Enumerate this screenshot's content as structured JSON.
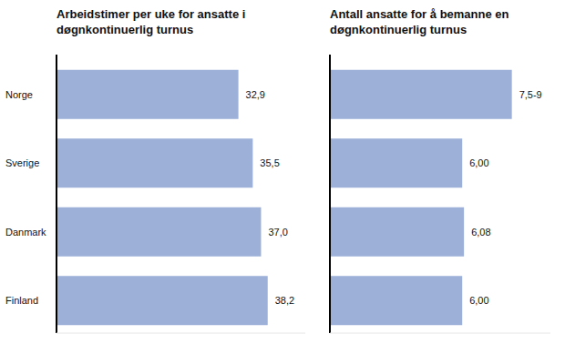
{
  "chart_data": [
    {
      "type": "bar",
      "orientation": "horizontal",
      "title": "Arbeidstimer per uke for ansatte i døgnkontinuerlig turnus",
      "categories": [
        "Norge",
        "Sverige",
        "Danmark",
        "Finland"
      ],
      "values": [
        32.9,
        35.5,
        37.0,
        38.2
      ],
      "value_labels": [
        "32,9",
        "35,5",
        "37,0",
        "38,2"
      ],
      "color": "#9cb0d8",
      "xlim": [
        0,
        45
      ],
      "tick_labels": "y",
      "data_labels": true,
      "grid": false
    },
    {
      "type": "bar",
      "orientation": "horizontal",
      "title": "Antall ansatte for å bemanne en døgnkontinuerlig turnus",
      "categories": [
        null,
        null,
        null,
        null
      ],
      "values": [
        8.25,
        6.0,
        6.08,
        6.0
      ],
      "value_labels": [
        "7,5-9",
        "6,00",
        "6,08",
        "6,00"
      ],
      "color": "#9cb0d8",
      "xlim": [
        0,
        10
      ],
      "tick_labels": false,
      "data_labels": true,
      "grid": false
    }
  ]
}
